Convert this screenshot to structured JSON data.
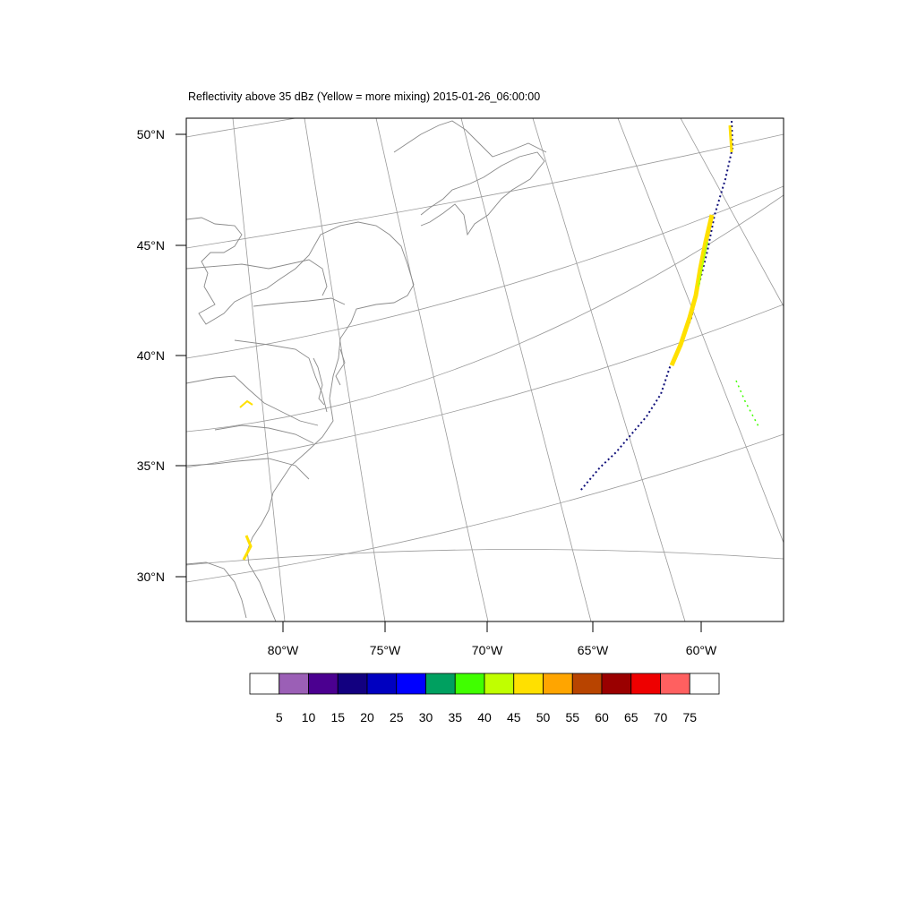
{
  "title": "Reflectivity above 35 dBz (Yellow = more mixing) 2015-01-26_06:00:00",
  "lat_labels": [
    {
      "text": "50°N",
      "lat": 50
    },
    {
      "text": "45°N",
      "lat": 45
    },
    {
      "text": "40°N",
      "lat": 40
    },
    {
      "text": "35°N",
      "lat": 35
    },
    {
      "text": "30°N",
      "lat": 30
    }
  ],
  "lon_labels": [
    {
      "text": "80°W",
      "lon": -80
    },
    {
      "text": "75°W",
      "lon": -75
    },
    {
      "text": "70°W",
      "lon": -70
    },
    {
      "text": "65°W",
      "lon": -65
    },
    {
      "text": "60°W",
      "lon": -60
    }
  ],
  "colorbar": {
    "levels": [
      "5",
      "10",
      "15",
      "20",
      "25",
      "30",
      "35",
      "40",
      "45",
      "50",
      "55",
      "60",
      "65",
      "70",
      "75"
    ],
    "colors": [
      "#ffffff",
      "#9b5fb6",
      "#4b0090",
      "#120080",
      "#0000c0",
      "#0000ff",
      "#00a060",
      "#40ff00",
      "#c0ff00",
      "#ffe000",
      "#ffa500",
      "#b84400",
      "#9a0000",
      "#ee0000",
      "#ff6060",
      "#ffffff"
    ]
  }
}
